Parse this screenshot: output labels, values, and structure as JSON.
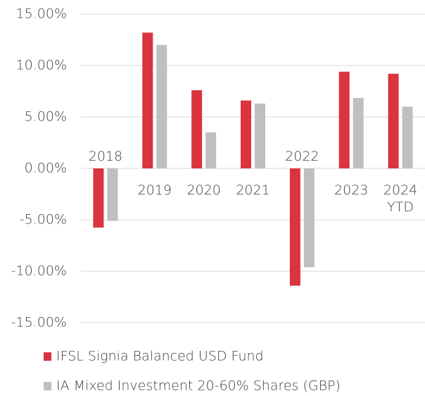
{
  "chart_data": {
    "type": "bar",
    "categories": [
      "2018",
      "2019",
      "2020",
      "2021",
      "2022",
      "2023",
      "2024 YTD"
    ],
    "series": [
      {
        "name": "IFSL Signia Balanced USD Fund",
        "color": "#d9343f",
        "values": [
          -5.75,
          13.2,
          7.6,
          6.6,
          -11.4,
          9.4,
          9.2
        ]
      },
      {
        "name": "IA Mixed Investment 20-60% Shares (GBP)",
        "color": "#bfbfbf",
        "values": [
          -5.1,
          12.0,
          3.5,
          6.3,
          -9.6,
          6.85,
          6.0
        ]
      }
    ],
    "ylim": [
      -15,
      15
    ],
    "yticks": [
      {
        "value": -15,
        "label": "-15.00%"
      },
      {
        "value": -10,
        "label": "-10.00%"
      },
      {
        "value": -5,
        "label": "-5.00%"
      },
      {
        "value": 0,
        "label": "0.00%"
      },
      {
        "value": 5,
        "label": "5.00%"
      },
      {
        "value": 10,
        "label": "10.00%"
      },
      {
        "value": 15,
        "label": "15.00%"
      }
    ],
    "grid": true,
    "legend": "bottom"
  }
}
